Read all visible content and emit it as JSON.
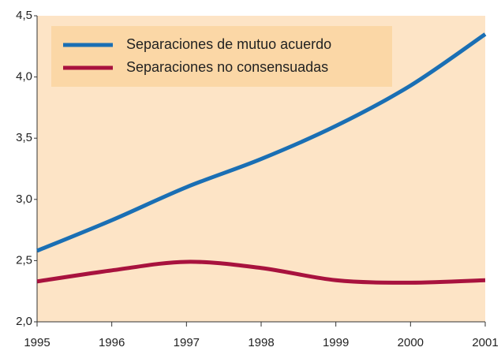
{
  "chart_data": {
    "type": "line",
    "x": [
      1995,
      1996,
      1997,
      1998,
      1999,
      2000,
      2001
    ],
    "series": [
      {
        "name": "Separaciones de mutuo acuerdo",
        "color": "#1a6fb4",
        "values": [
          2.58,
          2.83,
          3.1,
          3.33,
          3.6,
          3.93,
          4.35
        ]
      },
      {
        "name": "Separaciones no consensuadas",
        "color": "#a8123e",
        "values": [
          2.33,
          2.42,
          2.49,
          2.44,
          2.34,
          2.32,
          2.34
        ]
      }
    ],
    "xlim": [
      1995,
      2001
    ],
    "xticks": [
      1995,
      1996,
      1997,
      1998,
      1999,
      2000,
      2001
    ],
    "ylim": [
      2.0,
      4.5
    ],
    "yticks": [
      {
        "value": 2.0,
        "label": "2,0"
      },
      {
        "value": 2.5,
        "label": "2,5"
      },
      {
        "value": 3.0,
        "label": "3,0"
      },
      {
        "value": 3.5,
        "label": "3,5"
      },
      {
        "value": 4.0,
        "label": "4,0"
      },
      {
        "value": 4.5,
        "label": "4,5"
      }
    ],
    "legend": "upper left",
    "background": "#fde4c6",
    "legend_background": "#fbd7a6"
  }
}
